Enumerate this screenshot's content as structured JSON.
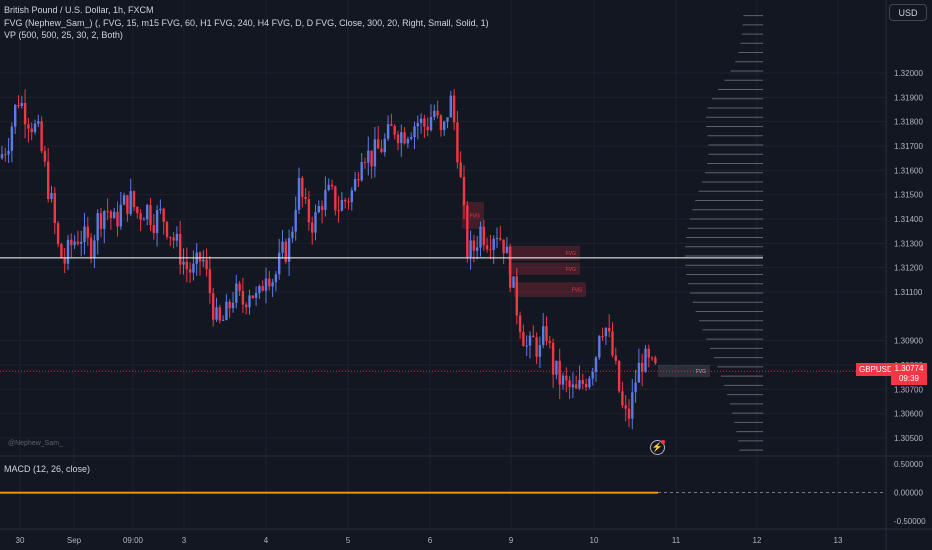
{
  "legend": {
    "title": "British Pound / U.S. Dollar, 1h, FXCM",
    "fvg": "FVG (Nephew_Sam_) (, FVG, 15, m15 FVG, 60, H1 FVG, 240, H4 FVG, D, D FVG, Close, 300, 20, Right, Small, Solid, 1)",
    "vp": "VP (500, 500, 25, 30, 2, Both)",
    "macd": "MACD (12, 26, close)"
  },
  "currency_button": "USD",
  "watermark": "@Nephew_Sam_",
  "last_price": {
    "symbol": "GBPUSD",
    "value": "1.30774",
    "countdown": "09:39"
  },
  "fvg_label": "FVG",
  "colors": {
    "up": "#5b7be6",
    "down": "#f23645",
    "background": "#131722",
    "grid": "#1e222d",
    "hline": "#ffffff"
  },
  "chart_data": [
    {
      "type": "candlestick",
      "ylim": [
        1.3043,
        1.323
      ],
      "ytick_labels": [
        "1.32000",
        "1.31900",
        "1.31800",
        "1.31700",
        "1.31600",
        "1.31500",
        "1.31400",
        "1.31300",
        "1.31200",
        "1.31100",
        "1.30900",
        "1.30800",
        "1.30700",
        "1.30600",
        "1.30500"
      ],
      "yticks": [
        1.32,
        1.319,
        1.318,
        1.317,
        1.316,
        1.315,
        1.314,
        1.313,
        1.312,
        1.311,
        1.309,
        1.308,
        1.307,
        1.306,
        1.305
      ],
      "xtick_labels": [
        "30",
        "Sep",
        "09:00",
        "3",
        "4",
        "5",
        "6",
        "9",
        "10",
        "11",
        "12",
        "13"
      ],
      "horizontal_line": 1.3124,
      "last_price_line": 1.30774,
      "close_path": [
        [
          0,
          1.3165
        ],
        [
          8,
          1.3172
        ],
        [
          18,
          1.319
        ],
        [
          28,
          1.3182
        ],
        [
          38,
          1.3175
        ],
        [
          46,
          1.3158
        ],
        [
          52,
          1.3145
        ],
        [
          58,
          1.3128
        ],
        [
          64,
          1.3122
        ],
        [
          72,
          1.313
        ],
        [
          80,
          1.3134
        ],
        [
          90,
          1.3128
        ],
        [
          98,
          1.314
        ],
        [
          106,
          1.3145
        ],
        [
          114,
          1.3138
        ],
        [
          122,
          1.3145
        ],
        [
          130,
          1.3148
        ],
        [
          138,
          1.3142
        ],
        [
          146,
          1.3145
        ],
        [
          154,
          1.314
        ],
        [
          162,
          1.3142
        ],
        [
          170,
          1.3135
        ],
        [
          178,
          1.3128
        ],
        [
          186,
          1.312
        ],
        [
          194,
          1.3118
        ],
        [
          202,
          1.3125
        ],
        [
          210,
          1.311
        ],
        [
          218,
          1.3095
        ],
        [
          226,
          1.31
        ],
        [
          234,
          1.311
        ],
        [
          242,
          1.3105
        ],
        [
          250,
          1.3112
        ],
        [
          258,
          1.3105
        ],
        [
          266,
          1.312
        ],
        [
          274,
          1.3115
        ],
        [
          282,
          1.3125
        ],
        [
          290,
          1.313
        ],
        [
          298,
          1.3155
        ],
        [
          306,
          1.3142
        ],
        [
          314,
          1.3138
        ],
        [
          322,
          1.3148
        ],
        [
          330,
          1.315
        ],
        [
          338,
          1.3145
        ],
        [
          346,
          1.3148
        ],
        [
          354,
          1.3152
        ],
        [
          362,
          1.317
        ],
        [
          370,
          1.3165
        ],
        [
          378,
          1.3168
        ],
        [
          386,
          1.3172
        ],
        [
          394,
          1.3178
        ],
        [
          402,
          1.3175
        ],
        [
          410,
          1.3178
        ],
        [
          418,
          1.318
        ],
        [
          426,
          1.3178
        ],
        [
          434,
          1.3185
        ],
        [
          442,
          1.3172
        ],
        [
          450,
          1.319
        ],
        [
          456,
          1.3175
        ],
        [
          460,
          1.3158
        ],
        [
          464,
          1.314
        ],
        [
          468,
          1.3125
        ],
        [
          474,
          1.3128
        ],
        [
          480,
          1.3136
        ],
        [
          488,
          1.3132
        ],
        [
          496,
          1.3136
        ],
        [
          504,
          1.313
        ],
        [
          510,
          1.3118
        ],
        [
          516,
          1.3105
        ],
        [
          522,
          1.3095
        ],
        [
          528,
          1.3085
        ],
        [
          534,
          1.309
        ],
        [
          540,
          1.3085
        ],
        [
          546,
          1.3095
        ],
        [
          552,
          1.308
        ],
        [
          558,
          1.3075
        ],
        [
          564,
          1.3072
        ],
        [
          570,
          1.307
        ],
        [
          576,
          1.3068
        ],
        [
          582,
          1.3072
        ],
        [
          590,
          1.3078
        ],
        [
          596,
          1.3085
        ],
        [
          600,
          1.3098
        ],
        [
          606,
          1.3095
        ],
        [
          612,
          1.3085
        ],
        [
          618,
          1.3072
        ],
        [
          624,
          1.3058
        ],
        [
          630,
          1.306
        ],
        [
          636,
          1.3075
        ],
        [
          642,
          1.3082
        ],
        [
          648,
          1.308
        ],
        [
          654,
          1.3077
        ],
        [
          658,
          1.30774
        ]
      ]
    },
    {
      "type": "line",
      "name": "MACD",
      "ytick_labels": [
        "0.50000",
        "0.00000",
        "-0.50000"
      ],
      "yticks": [
        0.5,
        0,
        -0.5
      ],
      "ylim": [
        -0.62,
        0.62
      ],
      "values_summary": "flat near 0.00000 across the visible range"
    }
  ]
}
